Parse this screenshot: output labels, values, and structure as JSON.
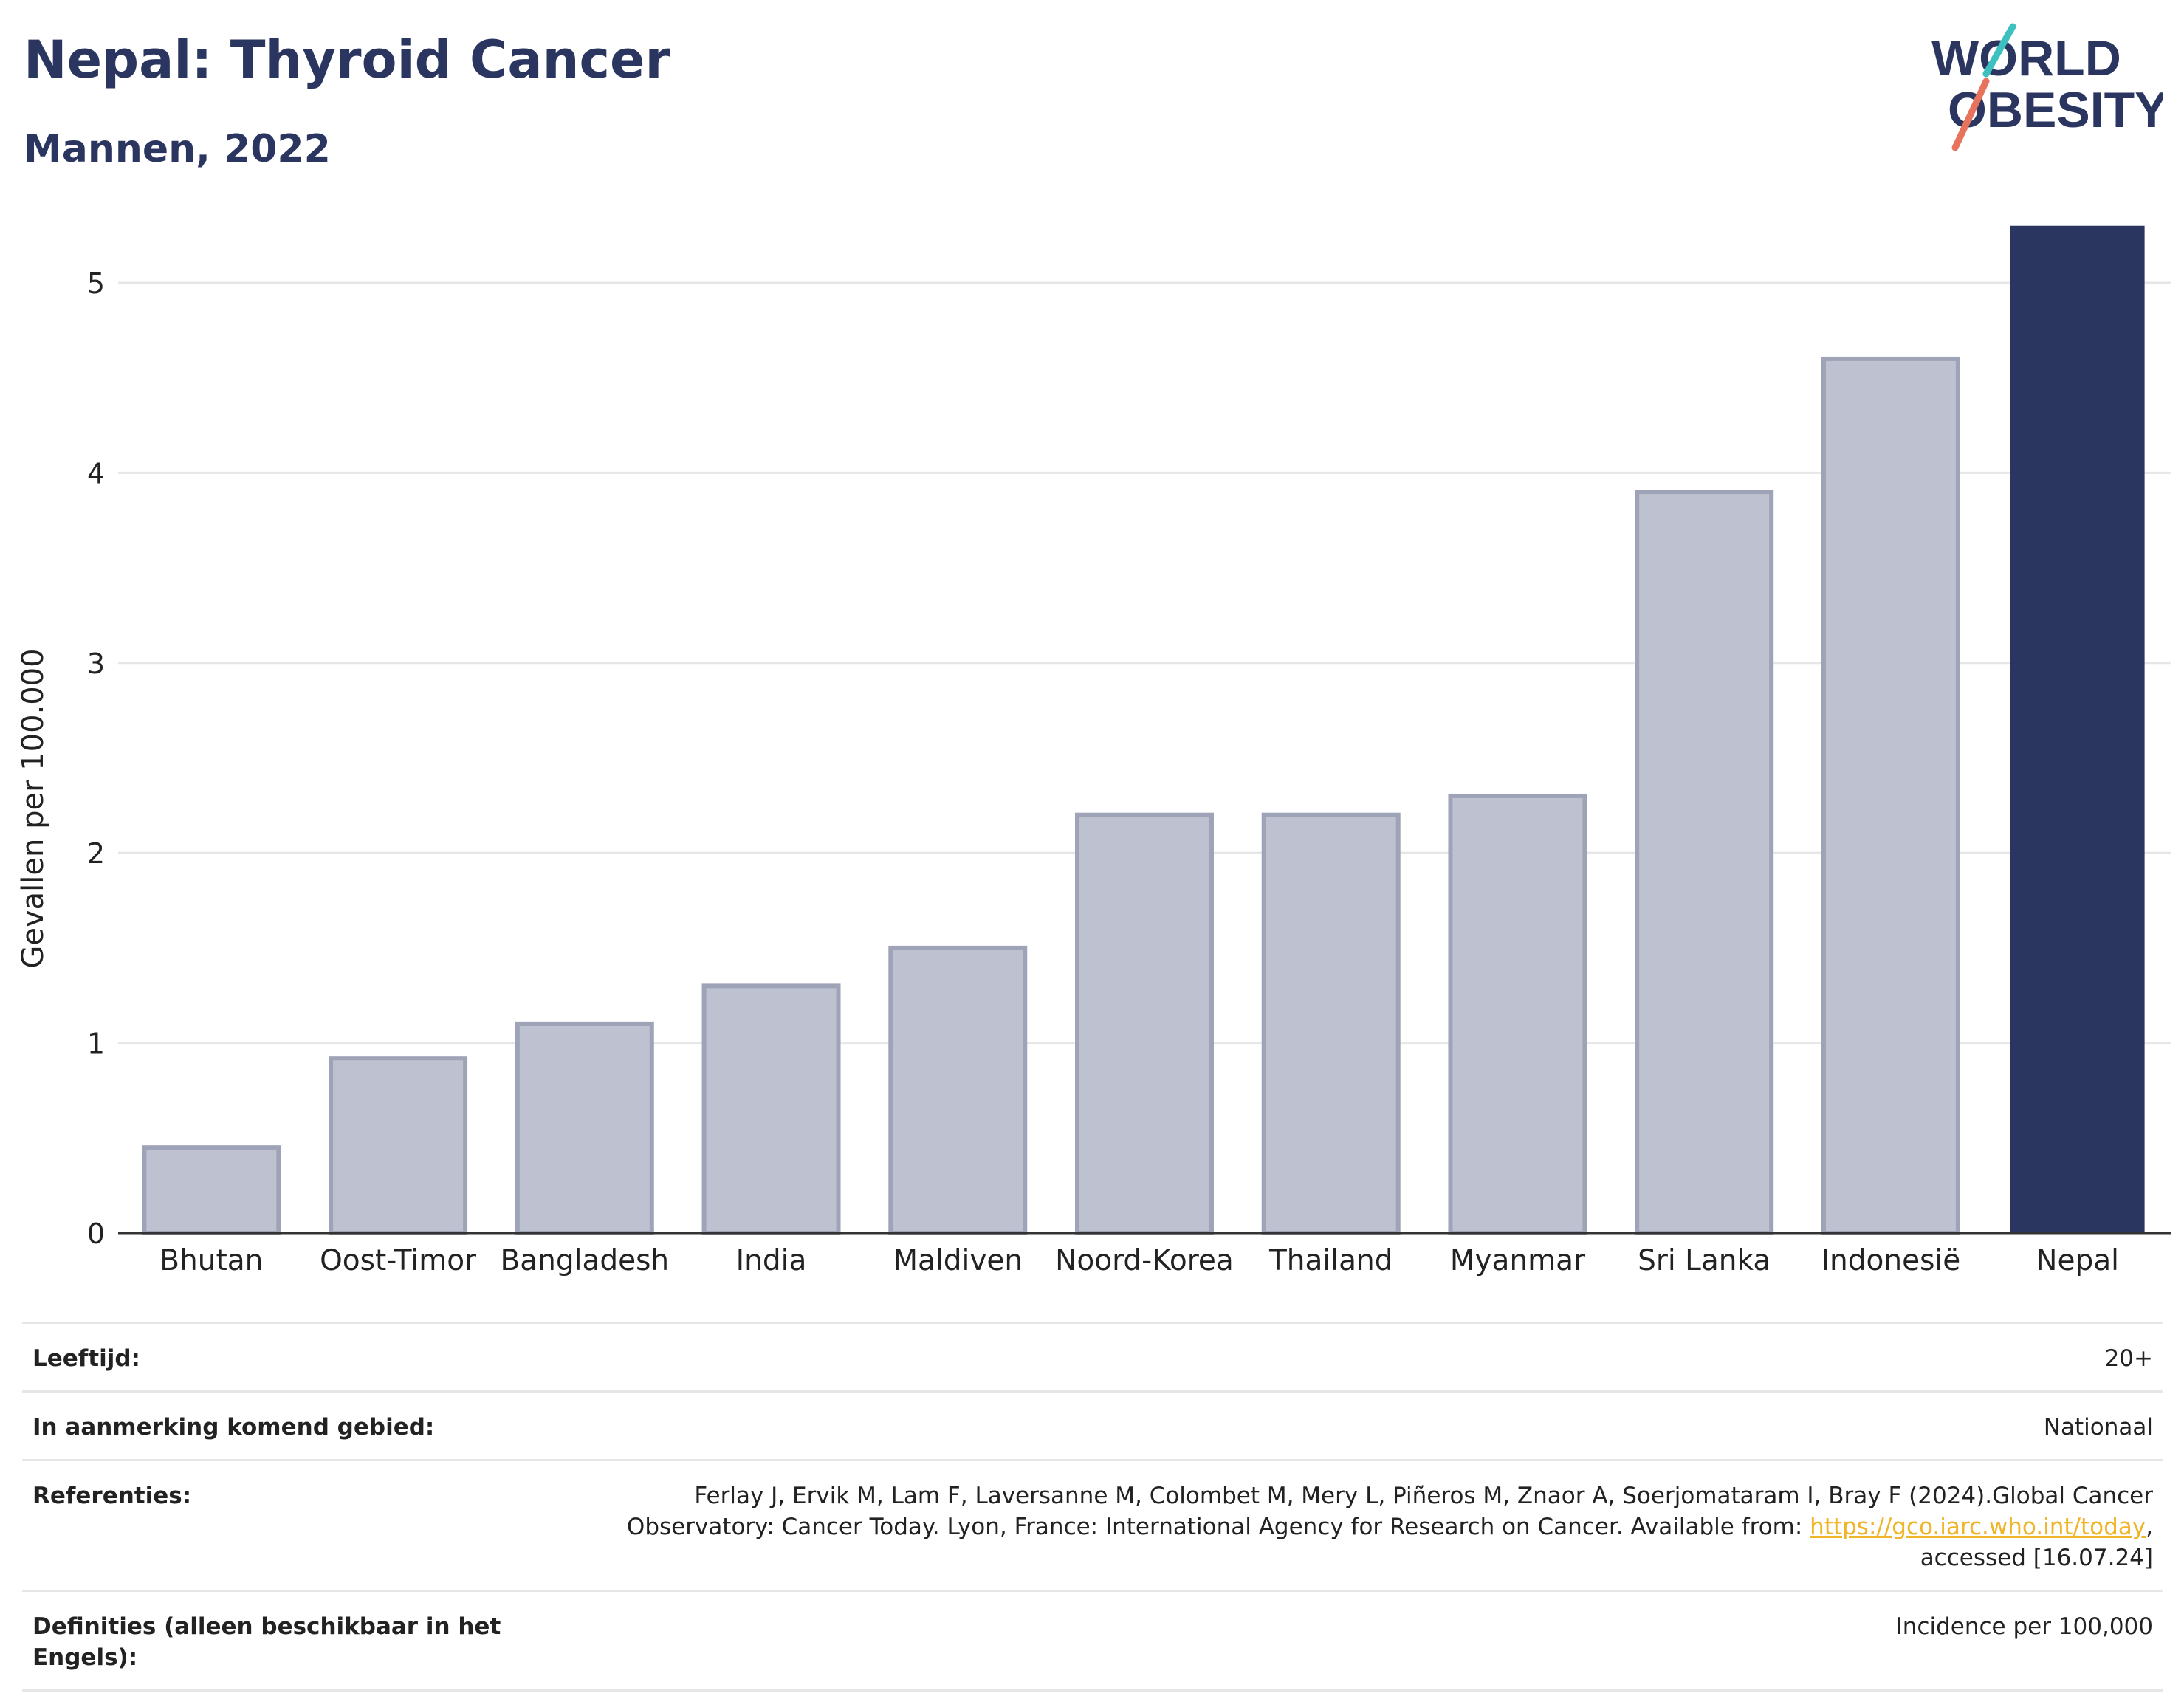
{
  "header": {
    "title": "Nepal: Thyroid Cancer",
    "subtitle": "Mannen, 2022"
  },
  "logo": {
    "line1": "WORLD",
    "line2": "OBESITY",
    "accent_teal": "#3cc0c0",
    "accent_red": "#e8735c"
  },
  "colors": {
    "highlight": "#2b3660",
    "bar_fill": "#bec1cf",
    "bar_stroke": "#9ea3b8",
    "grid": "#e6e6e6"
  },
  "chart_data": {
    "type": "bar",
    "categories": [
      "Bhutan",
      "Oost-Timor",
      "Bangladesh",
      "India",
      "Maldiven",
      "Noord-Korea",
      "Thailand",
      "Myanmar",
      "Sri Lanka",
      "Indonesië",
      "Nepal"
    ],
    "values": [
      0.45,
      0.92,
      1.1,
      1.3,
      1.5,
      2.2,
      2.2,
      2.3,
      3.9,
      4.6,
      5.3
    ],
    "highlight": "Nepal",
    "ylabel": "Gevallen per 100.000",
    "ylim": [
      0,
      5.4
    ],
    "yticks": [
      0,
      1,
      2,
      3,
      4,
      5
    ],
    "grid": true
  },
  "meta": {
    "rows": [
      {
        "label": "Leeftijd:",
        "value": "20+"
      },
      {
        "label": "In aanmerking komend gebied:",
        "value": "Nationaal"
      },
      {
        "label": "Referenties:",
        "value_pre": "Ferlay J, Ervik M, Lam F, Laversanne M, Colombet M, Mery L, Piñeros M, Znaor A, Soerjomataram I, Bray F (2024).Global Cancer Observatory: Cancer Today. Lyon, France: International Agency for Research on Cancer. Available from: ",
        "link": "https://gco.iarc.who.int/today",
        "value_post": ", accessed [16.07.24]"
      },
      {
        "label": "Definities (alleen beschikbaar in het Engels):",
        "value": "Incidence per 100,000"
      }
    ]
  }
}
